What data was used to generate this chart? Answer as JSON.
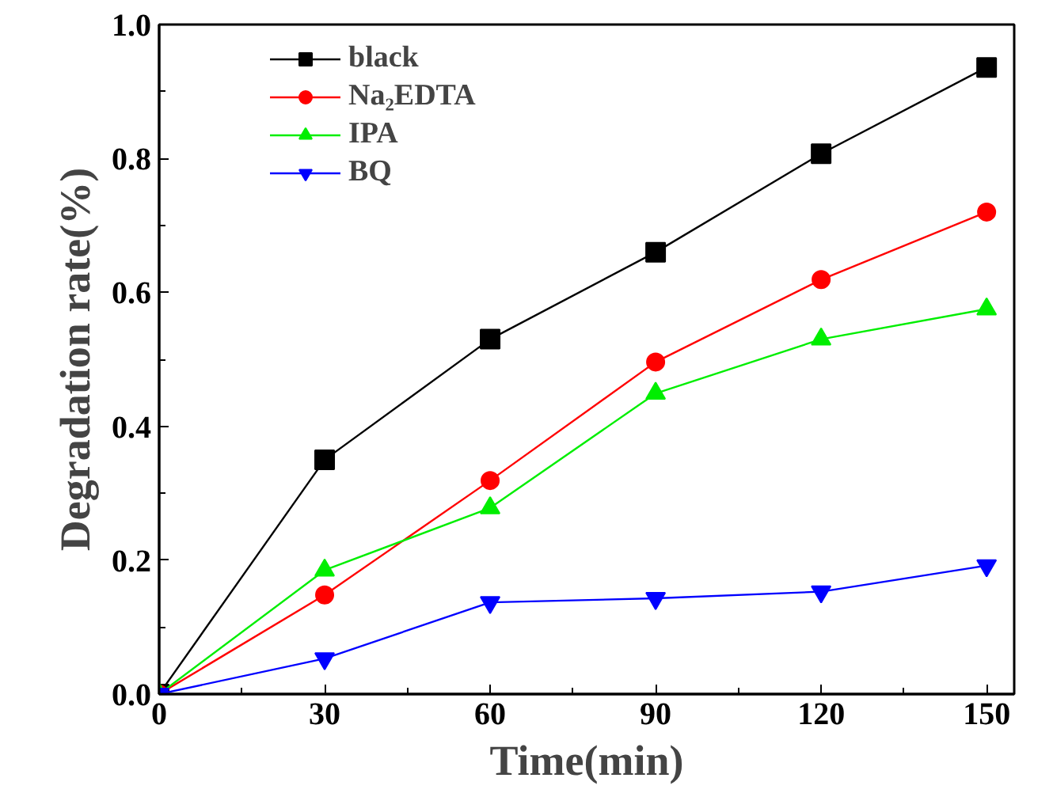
{
  "chart_data": {
    "type": "line",
    "xlabel": "Time(min)",
    "ylabel": "Degradation rate(%)",
    "x": [
      0,
      30,
      60,
      90,
      120,
      150
    ],
    "series": [
      {
        "name": "black",
        "color": "#000000",
        "marker": "square",
        "values": [
          0,
          0.35,
          0.53,
          0.66,
          0.807,
          0.936
        ]
      },
      {
        "name": "Na₂EDTA",
        "color": "#ff0000",
        "marker": "circle",
        "values": [
          0,
          0.148,
          0.319,
          0.496,
          0.619,
          0.72
        ]
      },
      {
        "name": "IPA",
        "color": "#00ee00",
        "marker": "triangle",
        "values": [
          0,
          0.185,
          0.278,
          0.449,
          0.53,
          0.575
        ]
      },
      {
        "name": "BQ",
        "color": "#0000ff",
        "marker": "triangle",
        "values": [
          0,
          0.053,
          0.137,
          0.143,
          0.153,
          0.192
        ]
      }
    ],
    "xlim": [
      0,
      155
    ],
    "xticks": [
      0,
      30,
      60,
      90,
      120,
      150
    ],
    "ylim": [
      0,
      1.0
    ],
    "yticks": [
      {
        "value": 0,
        "label": "0.0"
      },
      {
        "value": 0.2,
        "label": "0.2"
      },
      {
        "value": 0.4,
        "label": "0.4"
      },
      {
        "value": 0.6,
        "label": "0.6"
      },
      {
        "value": 0.8,
        "label": "0.8"
      },
      {
        "value": 1.0,
        "label": "1.0"
      }
    ],
    "grid": false,
    "legend": "top left",
    "line_style": "solid"
  }
}
